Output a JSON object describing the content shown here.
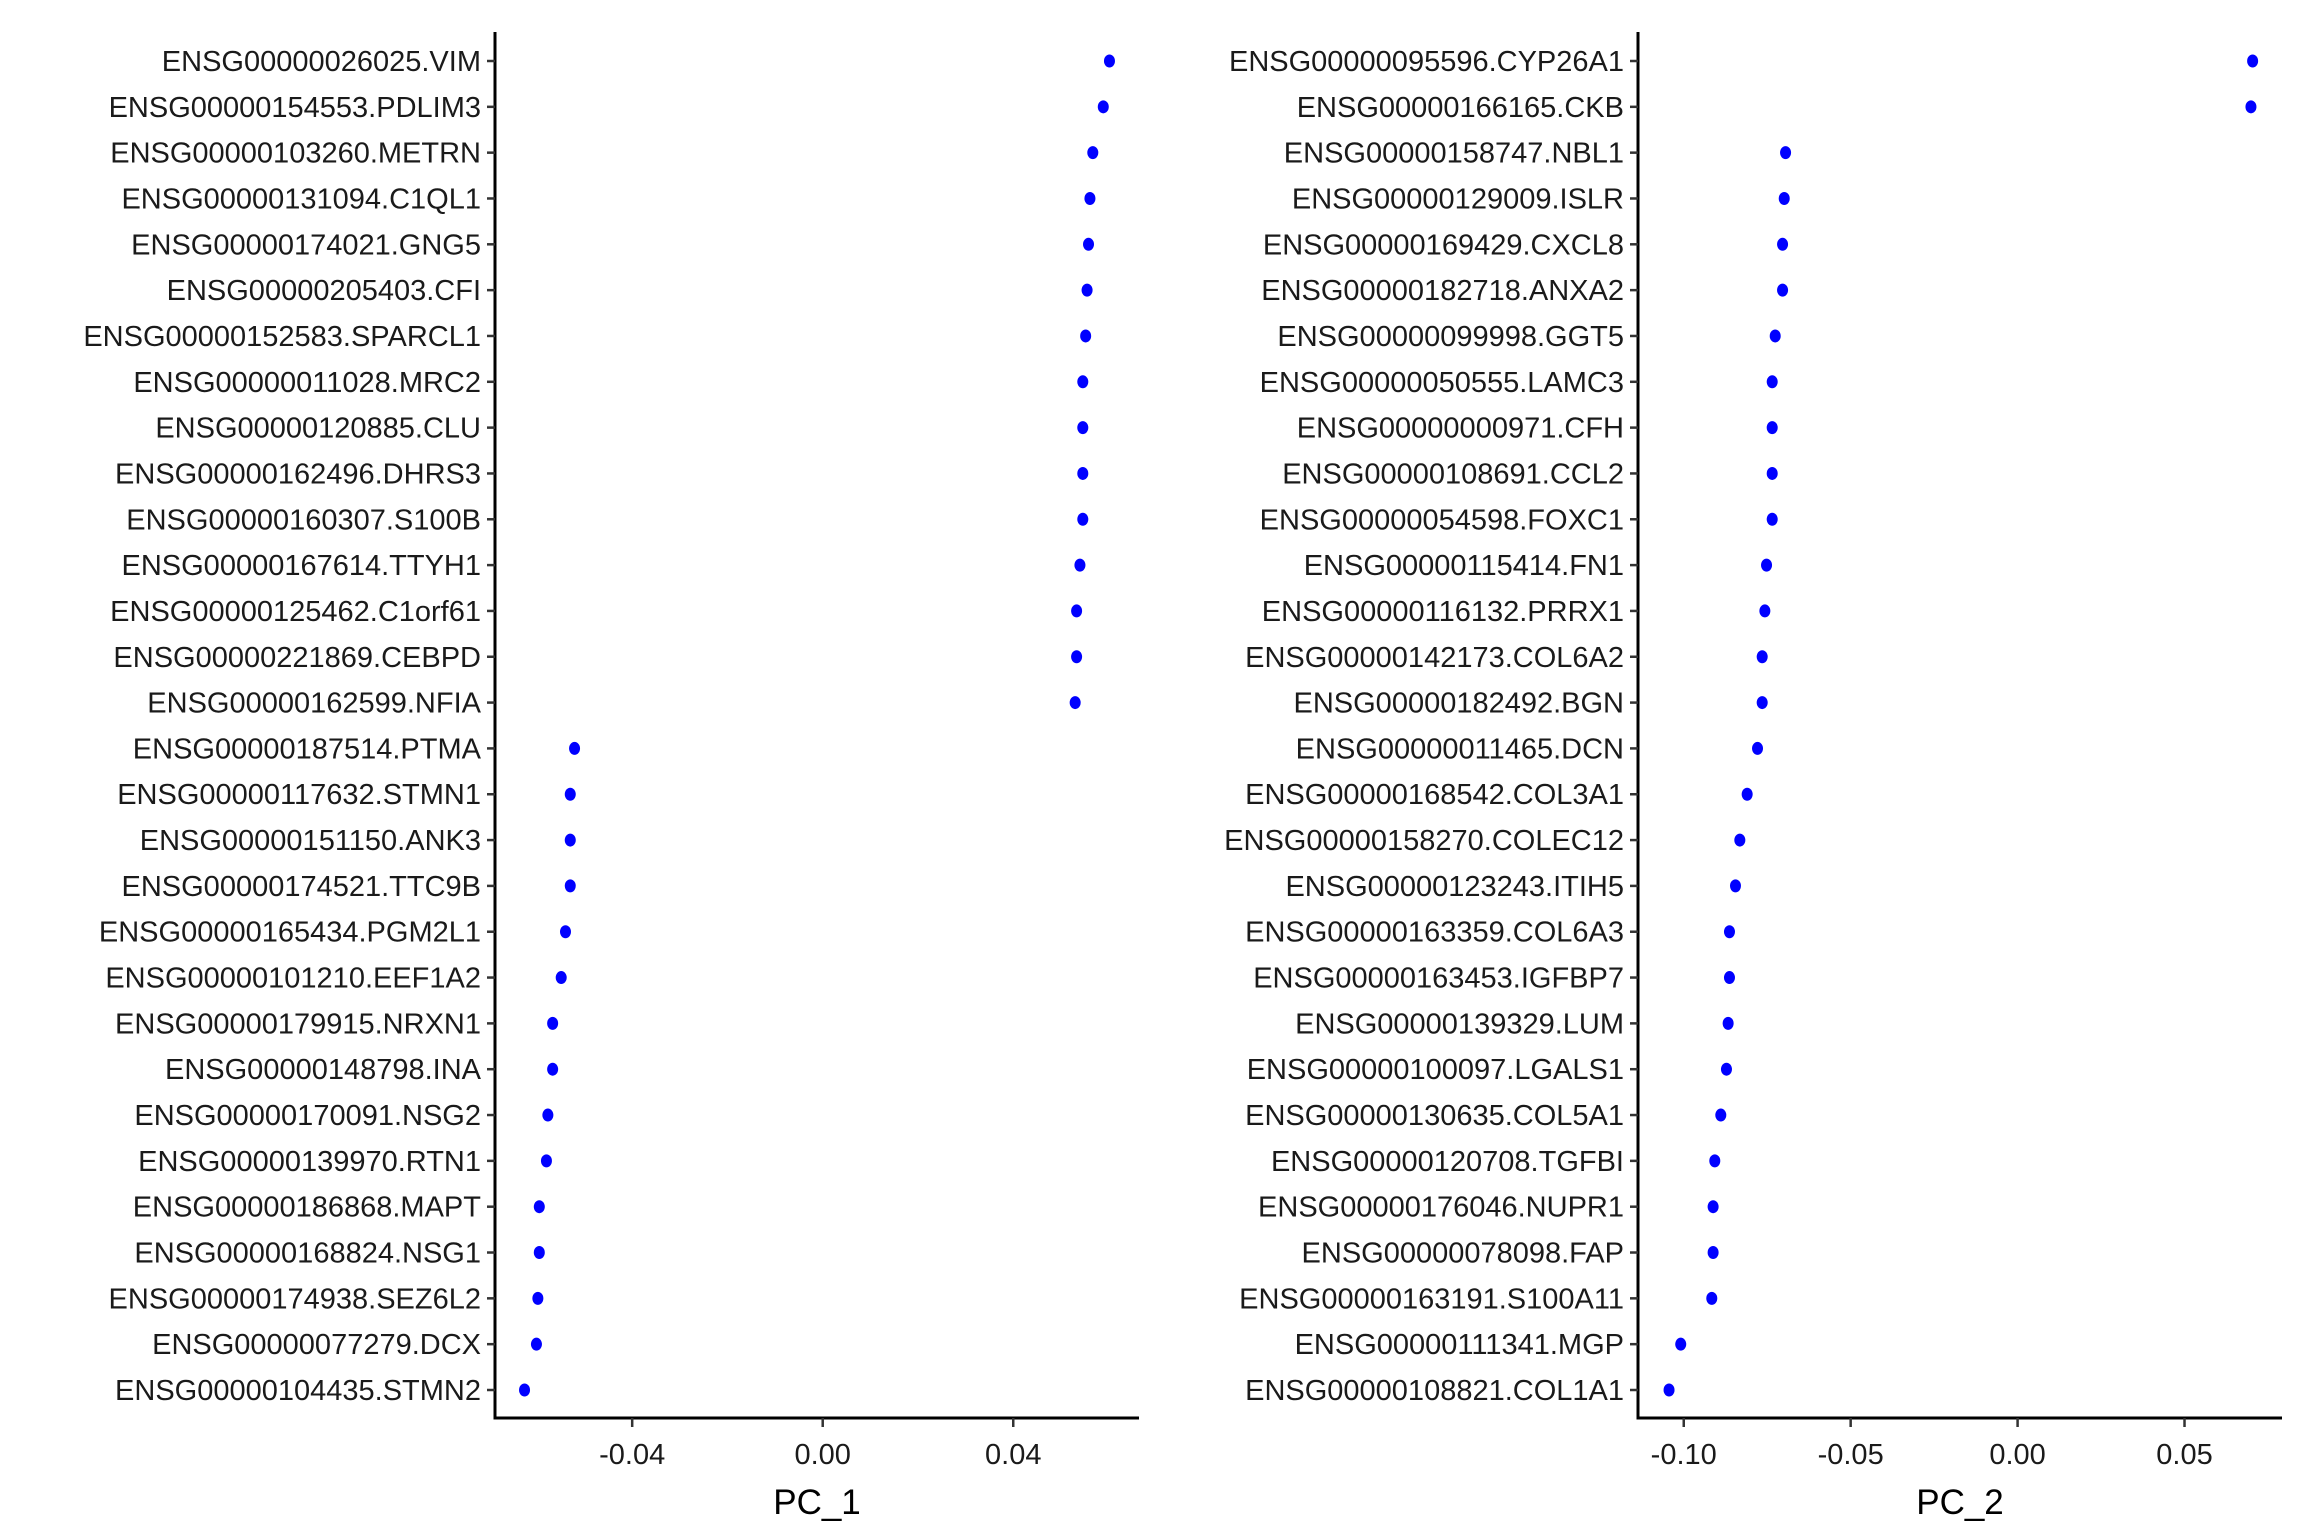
{
  "chart_data": [
    {
      "type": "scatter",
      "xlabel": "PC_1",
      "xlim": [
        -0.0688,
        0.0664
      ],
      "xticks": [
        -0.04,
        0.0,
        0.04
      ],
      "xtick_labels": [
        "-0.04",
        "0.00",
        "0.04"
      ],
      "grid": false,
      "point_color": "#0000ff",
      "genes": [
        "ENSG00000026025.VIM",
        "ENSG00000154553.PDLIM3",
        "ENSG00000103260.METRN",
        "ENSG00000131094.C1QL1",
        "ENSG00000174021.GNG5",
        "ENSG00000205403.CFI",
        "ENSG00000152583.SPARCL1",
        "ENSG00000011028.MRC2",
        "ENSG00000120885.CLU",
        "ENSG00000162496.DHRS3",
        "ENSG00000160307.S100B",
        "ENSG00000167614.TTYH1",
        "ENSG00000125462.C1orf61",
        "ENSG00000221869.CEBPD",
        "ENSG00000162599.NFIA",
        "ENSG00000187514.PTMA",
        "ENSG00000117632.STMN1",
        "ENSG00000151150.ANK3",
        "ENSG00000174521.TTC9B",
        "ENSG00000165434.PGM2L1",
        "ENSG00000101210.EEF1A2",
        "ENSG00000179915.NRXN1",
        "ENSG00000148798.INA",
        "ENSG00000170091.NSG2",
        "ENSG00000139970.RTN1",
        "ENSG00000186868.MAPT",
        "ENSG00000168824.NSG1",
        "ENSG00000174938.SEZ6L2",
        "ENSG00000077279.DCX",
        "ENSG00000104435.STMN2"
      ],
      "values": [
        0.0602,
        0.0589,
        0.0567,
        0.0561,
        0.0558,
        0.0555,
        0.0552,
        0.0546,
        0.0546,
        0.0546,
        0.0546,
        0.054,
        0.0533,
        0.0533,
        0.053,
        -0.0521,
        -0.053,
        -0.053,
        -0.053,
        -0.054,
        -0.0549,
        -0.0567,
        -0.0567,
        -0.0577,
        -0.058,
        -0.0595,
        -0.0595,
        -0.0598,
        -0.0601,
        -0.0626
      ]
    },
    {
      "type": "scatter",
      "xlabel": "PC_2",
      "xlim": [
        -0.1137,
        0.0792
      ],
      "xticks": [
        -0.1,
        -0.05,
        0.0,
        0.05
      ],
      "xtick_labels": [
        "-0.10",
        "-0.05",
        "0.00",
        "0.05"
      ],
      "grid": false,
      "point_color": "#0000ff",
      "genes": [
        "ENSG00000095596.CYP26A1",
        "ENSG00000166165.CKB",
        "ENSG00000158747.NBL1",
        "ENSG00000129009.ISLR",
        "ENSG00000169429.CXCL8",
        "ENSG00000182718.ANXA2",
        "ENSG00000099998.GGT5",
        "ENSG00000050555.LAMC3",
        "ENSG00000000971.CFH",
        "ENSG00000108691.CCL2",
        "ENSG00000054598.FOXC1",
        "ENSG00000115414.FN1",
        "ENSG00000116132.PRRX1",
        "ENSG00000142173.COL6A2",
        "ENSG00000182492.BGN",
        "ENSG00000011465.DCN",
        "ENSG00000168542.COL3A1",
        "ENSG00000158270.COLEC12",
        "ENSG00000123243.ITIH5",
        "ENSG00000163359.COL6A3",
        "ENSG00000163453.IGFBP7",
        "ENSG00000139329.LUM",
        "ENSG00000100097.LGALS1",
        "ENSG00000130635.COL5A1",
        "ENSG00000120708.TGFBI",
        "ENSG00000176046.NUPR1",
        "ENSG00000078098.FAP",
        "ENSG00000163191.S100A11",
        "ENSG00000111341.MGP",
        "ENSG00000108821.COL1A1"
      ],
      "values": [
        0.0704,
        0.0699,
        -0.0695,
        -0.0699,
        -0.0704,
        -0.0704,
        -0.0726,
        -0.0735,
        -0.0735,
        -0.0735,
        -0.0735,
        -0.0752,
        -0.0757,
        -0.0765,
        -0.0765,
        -0.0779,
        -0.081,
        -0.0832,
        -0.0845,
        -0.0863,
        -0.0863,
        -0.0867,
        -0.0872,
        -0.0889,
        -0.0907,
        -0.0912,
        -0.0912,
        -0.0916,
        -0.1009,
        -0.1044
      ]
    }
  ]
}
